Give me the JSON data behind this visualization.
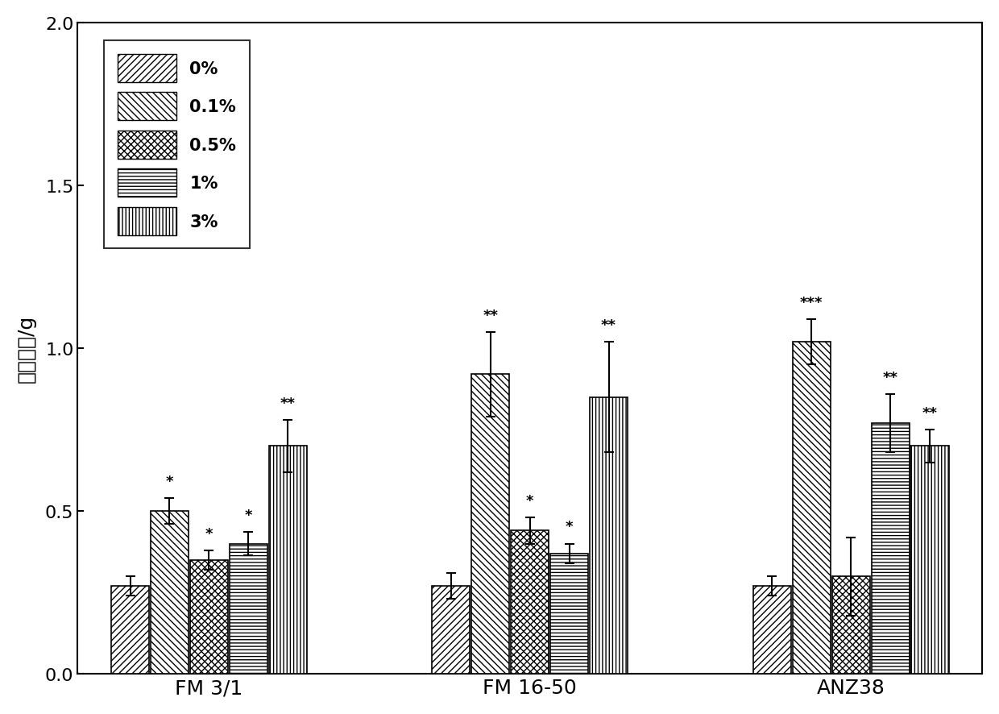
{
  "groups": [
    "FM 3/1",
    "FM 16-50",
    "ANZ38"
  ],
  "series_labels": [
    "0%",
    "0.1%",
    "0.5%",
    "1%",
    "3%"
  ],
  "values": [
    [
      0.27,
      0.5,
      0.35,
      0.4,
      0.7
    ],
    [
      0.27,
      0.92,
      0.44,
      0.37,
      0.85
    ],
    [
      0.27,
      1.02,
      0.3,
      0.77,
      0.7
    ]
  ],
  "errors": [
    [
      0.03,
      0.04,
      0.03,
      0.035,
      0.08
    ],
    [
      0.04,
      0.13,
      0.04,
      0.03,
      0.17
    ],
    [
      0.03,
      0.07,
      0.12,
      0.09,
      0.05
    ]
  ],
  "significance": [
    [
      "",
      "*",
      "*",
      "*",
      "**"
    ],
    [
      "",
      "**",
      "*",
      "*",
      "**"
    ],
    [
      "",
      "***",
      "",
      "**",
      "**"
    ]
  ],
  "hatch_patterns": [
    "////",
    "\\\\\\\\",
    "xxxx",
    "----",
    "||||"
  ],
  "ylabel": "植株干重/g",
  "ylim": [
    0.0,
    2.0
  ],
  "yticks": [
    0.0,
    0.5,
    1.0,
    1.5,
    2.0
  ],
  "bar_width": 0.13,
  "background_color": "#ffffff",
  "bar_color": "#ffffff",
  "edge_color": "#000000",
  "fontsize": 16,
  "tick_fontsize": 16,
  "legend_fontsize": 15,
  "sig_fontsize": 13
}
